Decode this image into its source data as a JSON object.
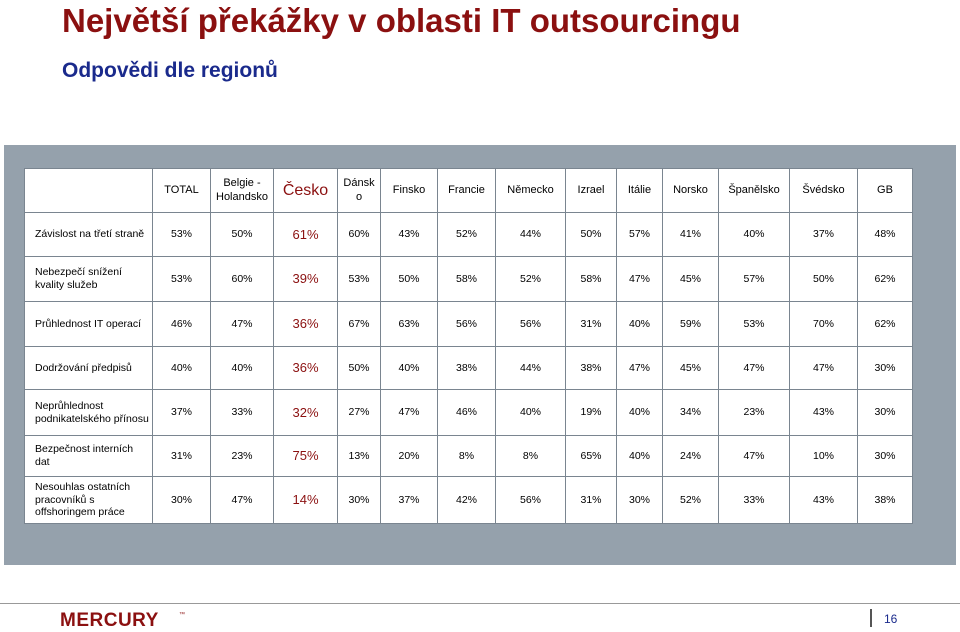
{
  "title": "Největší překážky v oblasti IT outsourcingu",
  "subtitle": "Odpovědi dle regionů",
  "colors": {
    "title": "#8b1010",
    "subtitle": "#1a2a8c",
    "highlight": "#8b1010",
    "panel": "#95a1ac"
  },
  "table": {
    "columns": [
      "TOTAL",
      "Belgie - Holandsko",
      "Česko",
      "Dánsk o",
      "Finsko",
      "Francie",
      "Německo",
      "Izrael",
      "Itálie",
      "Norsko",
      "Španělsko",
      "Švédsko",
      "GB"
    ],
    "rows": [
      {
        "label": "Závislost na třetí straně",
        "values": [
          "53%",
          "50%",
          "61%",
          "60%",
          "43%",
          "52%",
          "44%",
          "50%",
          "57%",
          "41%",
          "40%",
          "37%",
          "48%"
        ]
      },
      {
        "label": "Nebezpečí snížení kvality služeb",
        "values": [
          "53%",
          "60%",
          "39%",
          "53%",
          "50%",
          "58%",
          "52%",
          "58%",
          "47%",
          "45%",
          "57%",
          "50%",
          "62%"
        ]
      },
      {
        "label": "Průhlednost IT operací",
        "values": [
          "46%",
          "47%",
          "36%",
          "67%",
          "63%",
          "56%",
          "56%",
          "31%",
          "40%",
          "59%",
          "53%",
          "70%",
          "62%"
        ]
      },
      {
        "label": "Dodržování předpisů",
        "values": [
          "40%",
          "40%",
          "36%",
          "50%",
          "40%",
          "38%",
          "44%",
          "38%",
          "47%",
          "45%",
          "47%",
          "47%",
          "30%"
        ]
      },
      {
        "label": "Neprůhlednost podnikatelského přínosu",
        "values": [
          "37%",
          "33%",
          "32%",
          "27%",
          "47%",
          "46%",
          "40%",
          "19%",
          "40%",
          "34%",
          "23%",
          "43%",
          "30%"
        ]
      },
      {
        "label": "Bezpečnost interních dat",
        "values": [
          "31%",
          "23%",
          "75%",
          "13%",
          "20%",
          "8%",
          "8%",
          "65%",
          "40%",
          "24%",
          "47%",
          "10%",
          "30%"
        ]
      },
      {
        "label": "Nesouhlas ostatních pracovníků s offshoringem práce",
        "values": [
          "30%",
          "47%",
          "14%",
          "30%",
          "37%",
          "42%",
          "56%",
          "31%",
          "30%",
          "52%",
          "33%",
          "43%",
          "38%"
        ]
      }
    ]
  },
  "footer": {
    "logo": "MERCURY",
    "page_number": "16"
  }
}
